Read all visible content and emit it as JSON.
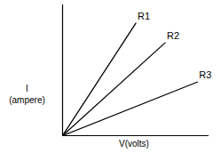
{
  "chart_data": {
    "type": "line",
    "x_label": "V(volts)",
    "y_label": "I\n(ampere)",
    "xlim": [
      0,
      10
    ],
    "ylim": [
      0,
      10
    ],
    "tick_labels": false,
    "grid": false,
    "series": [
      {
        "name": "R1",
        "color": "#000000",
        "x": [
          0,
          5.0
        ],
        "values": [
          0,
          8.6
        ]
      },
      {
        "name": "R2",
        "color": "#000000",
        "x": [
          0,
          7.0
        ],
        "values": [
          0,
          7.1
        ]
      },
      {
        "name": "R3",
        "color": "#000000",
        "x": [
          0,
          9.2
        ],
        "values": [
          0,
          4.1
        ]
      }
    ]
  }
}
